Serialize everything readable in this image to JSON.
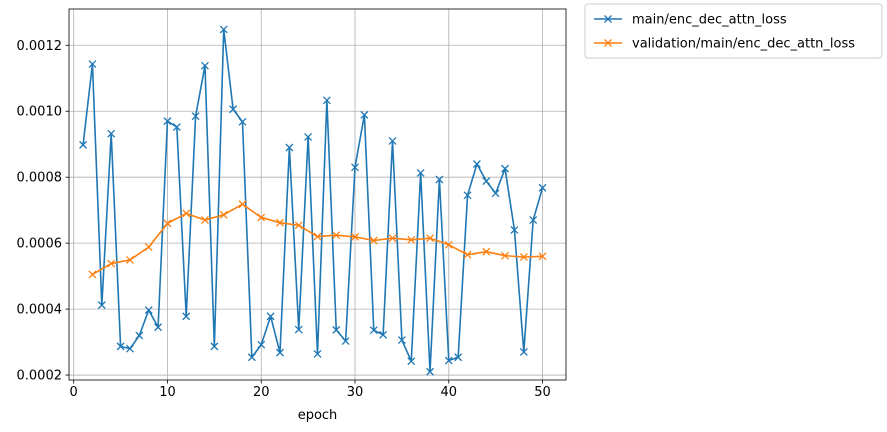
{
  "chart_data": {
    "type": "line",
    "xlabel": "epoch",
    "ylabel": "",
    "xlim": [
      -0.5,
      52.5
    ],
    "ylim": [
      0.000185,
      0.00131
    ],
    "xticks": [
      0,
      10,
      20,
      30,
      40,
      50
    ],
    "xtick_labels": [
      "0",
      "10",
      "20",
      "30",
      "40",
      "50"
    ],
    "yticks": [
      0.0002,
      0.0004,
      0.0006,
      0.0008,
      0.001,
      0.0012
    ],
    "ytick_labels": [
      "0.0002",
      "0.0004",
      "0.0006",
      "0.0008",
      "0.0010",
      "0.0012"
    ],
    "grid": true,
    "legend_position": "outside-top-right",
    "series": [
      {
        "name": "main/enc_dec_attn_loss",
        "color": "#1f77b4",
        "marker": "x",
        "x": [
          1,
          2,
          3,
          4,
          5,
          6,
          7,
          8,
          9,
          10,
          11,
          12,
          13,
          14,
          15,
          16,
          17,
          18,
          19,
          20,
          21,
          22,
          23,
          24,
          25,
          26,
          27,
          28,
          29,
          30,
          31,
          32,
          33,
          34,
          35,
          36,
          37,
          38,
          39,
          40,
          41,
          42,
          43,
          44,
          45,
          46,
          47,
          48,
          49,
          50
        ],
        "y": [
          0.000898,
          0.001143,
          0.000412,
          0.000932,
          0.000287,
          0.00028,
          0.00032,
          0.000397,
          0.000345,
          0.00097,
          0.000952,
          0.000378,
          0.000985,
          0.001138,
          0.000287,
          0.001248,
          0.001006,
          0.000968,
          0.000254,
          0.000292,
          0.000378,
          0.000268,
          0.00089,
          0.000338,
          0.000922,
          0.000264,
          0.001033,
          0.000337,
          0.000303,
          0.00083,
          0.000989,
          0.000336,
          0.000322,
          0.00091,
          0.000306,
          0.000242,
          0.000813,
          0.00021,
          0.000793,
          0.000244,
          0.000254,
          0.000745,
          0.00084,
          0.000788,
          0.000751,
          0.000826,
          0.00064,
          0.00027,
          0.00067,
          0.000768
        ]
      },
      {
        "name": "validation/main/enc_dec_attn_loss",
        "color": "#ff7f0e",
        "marker": "x",
        "x": [
          2,
          4,
          6,
          8,
          10,
          12,
          14,
          16,
          18,
          20,
          22,
          24,
          26,
          28,
          30,
          32,
          34,
          36,
          38,
          40,
          42,
          44,
          46,
          48,
          50
        ],
        "y": [
          0.000505,
          0.000538,
          0.000549,
          0.000588,
          0.00066,
          0.00069,
          0.00067,
          0.000686,
          0.000718,
          0.000678,
          0.000662,
          0.000654,
          0.00062,
          0.000624,
          0.000619,
          0.000608,
          0.000615,
          0.00061,
          0.000615,
          0.000595,
          0.000565,
          0.000574,
          0.000562,
          0.000558,
          0.00056
        ]
      }
    ]
  }
}
